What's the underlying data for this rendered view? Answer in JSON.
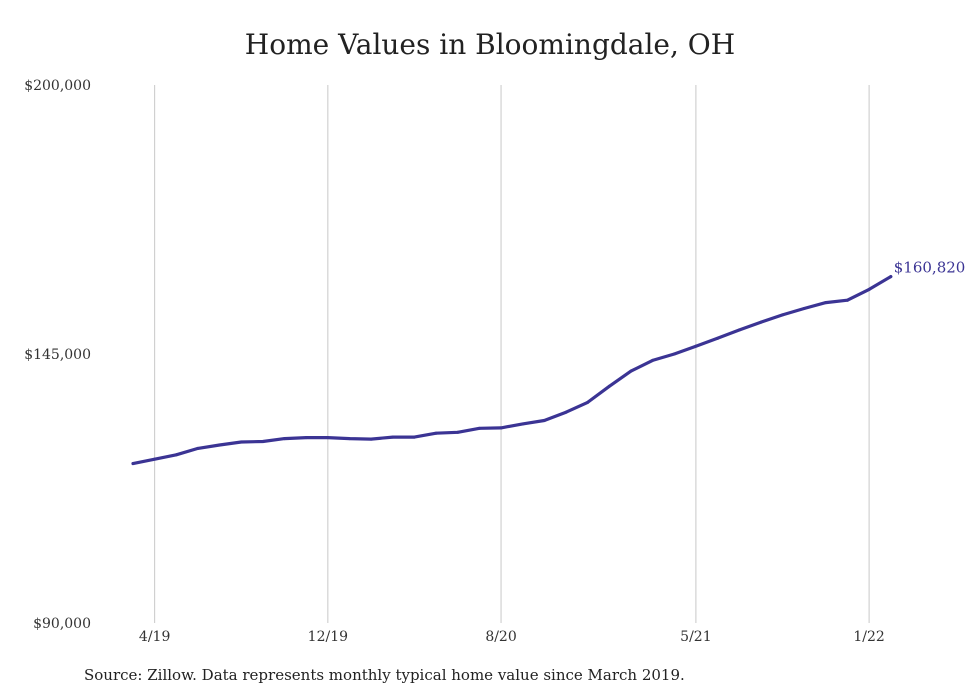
{
  "chart_data": {
    "type": "line",
    "title": "Home Values in Bloomingdale, OH",
    "xlabel": "",
    "ylabel": "",
    "ylim": [
      90000,
      200000
    ],
    "y_ticks": [
      "$200,000",
      "$145,000",
      "$90,000"
    ],
    "y_tick_values": [
      200000,
      145000,
      90000
    ],
    "x_ticks": [
      "4/19",
      "12/19",
      "8/20",
      "5/21",
      "1/22"
    ],
    "grid": "vertical",
    "line_color": "#3b3494",
    "end_label": "$160,820",
    "series": [
      {
        "x": [
          "3/19",
          "4/19",
          "5/19",
          "6/19",
          "7/19",
          "8/19",
          "9/19",
          "10/19",
          "11/19",
          "12/19",
          "1/20",
          "2/20",
          "3/20",
          "4/20",
          "5/20",
          "6/20",
          "7/20",
          "8/20",
          "9/20",
          "10/20",
          "11/20",
          "12/20",
          "1/21",
          "2/21",
          "3/21",
          "4/21",
          "5/21",
          "6/21",
          "7/21",
          "8/21",
          "9/21",
          "10/21",
          "11/21",
          "12/21",
          "1/22",
          "2/22"
        ],
        "values": [
          122600,
          123500,
          124400,
          125700,
          126400,
          127000,
          127100,
          127700,
          127900,
          127900,
          127700,
          127600,
          128000,
          128000,
          128800,
          129000,
          129800,
          129900,
          130700,
          131400,
          133100,
          135100,
          138400,
          141500,
          143700,
          145000,
          146600,
          148200,
          149900,
          151500,
          153000,
          154300,
          155500,
          156000,
          158200,
          160820
        ]
      }
    ],
    "source": "Source: Zillow. Data represents monthly typical home value since March 2019."
  }
}
